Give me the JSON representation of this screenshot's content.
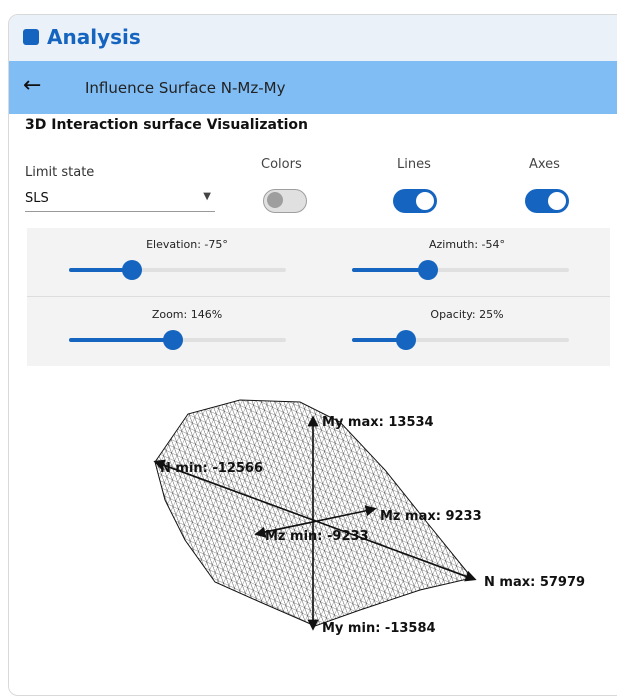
{
  "header": {
    "title": "Analysis"
  },
  "nav": {
    "title": "Influence Surface N-Mz-My"
  },
  "section": {
    "title": "3D Interaction surface Visualization"
  },
  "controls": {
    "limit_state": {
      "label": "Limit state",
      "value": "SLS"
    },
    "toggles": [
      {
        "label": "Colors",
        "on": false
      },
      {
        "label": "Lines",
        "on": true
      },
      {
        "label": "Axes",
        "on": true
      }
    ]
  },
  "sliders": [
    {
      "label": "Elevation: -75°"
    },
    {
      "label": "Azimuth: -54°"
    },
    {
      "label": "Zoom: 146%"
    },
    {
      "label": "Opacity: 25%"
    }
  ],
  "plot": {
    "labels": {
      "my_max": "My max: 13534",
      "n_min": "N min: -12566",
      "mz_max": "Mz max: 9233",
      "mz_min": "Mz min: -9233",
      "n_max": "N max: 57979",
      "my_min": "My min: -13584"
    }
  }
}
